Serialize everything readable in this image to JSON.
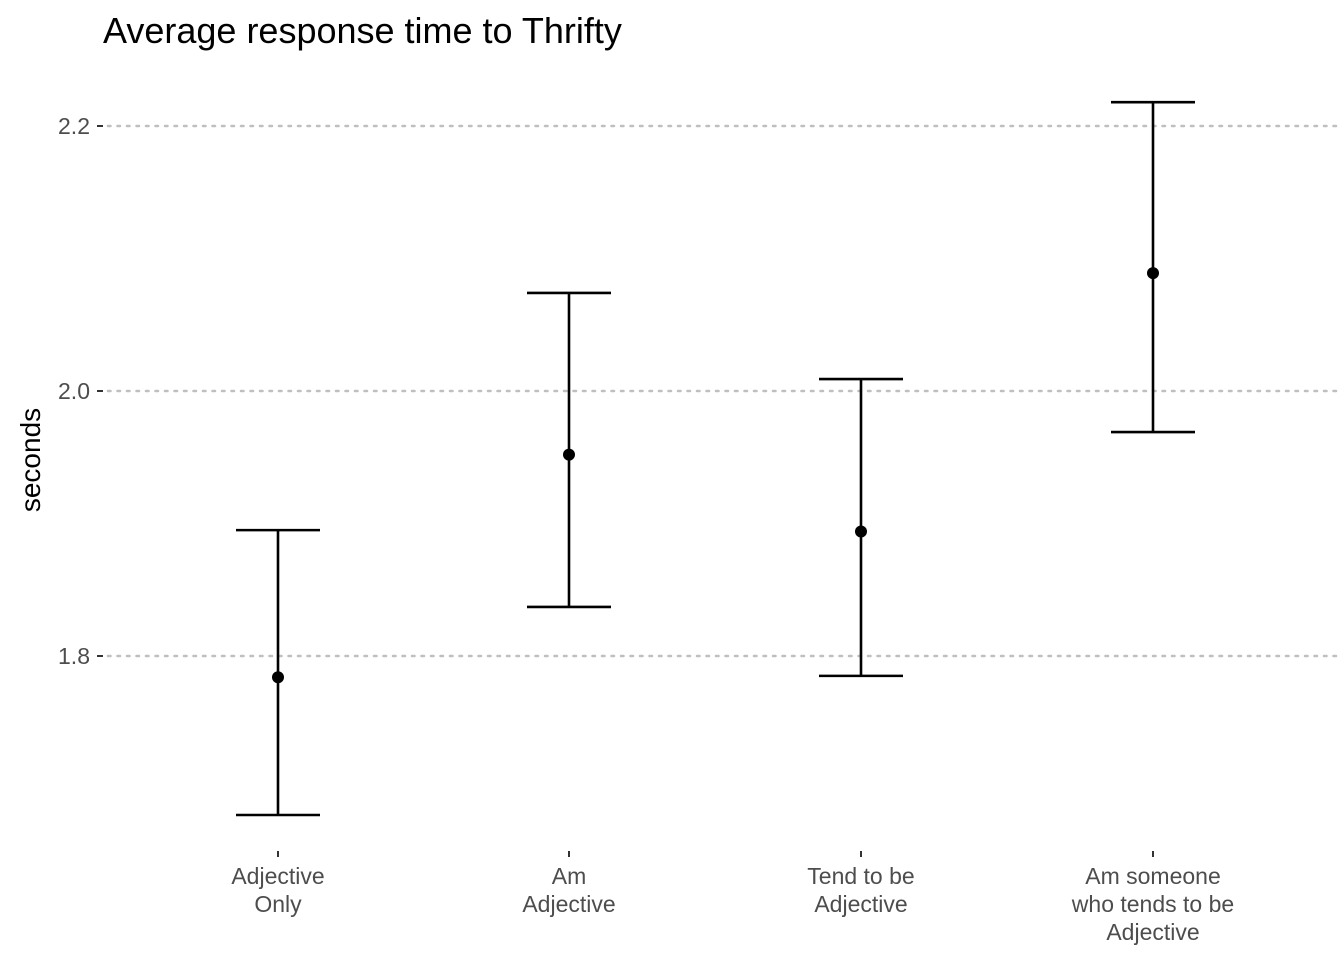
{
  "chart_data": {
    "type": "errorbar",
    "title": "Average response time to Thrifty",
    "xlabel": "",
    "ylabel": "seconds",
    "categories": [
      [
        "Adjective",
        "Only"
      ],
      [
        "Am",
        "Adjective"
      ],
      [
        "Tend to be",
        "Adjective"
      ],
      [
        "Am someone",
        "who tends to be",
        "Adjective"
      ]
    ],
    "points": [
      {
        "mean": 1.784,
        "lower": 1.68,
        "upper": 1.895
      },
      {
        "mean": 1.952,
        "lower": 1.837,
        "upper": 2.074
      },
      {
        "mean": 1.894,
        "lower": 1.785,
        "upper": 2.009
      },
      {
        "mean": 2.089,
        "lower": 1.969,
        "upper": 2.218
      }
    ],
    "yticks": [
      1.8,
      2.0,
      2.2
    ],
    "ytick_labels": [
      "1.8",
      "2.0",
      "2.2"
    ],
    "ylim": [
      1.665,
      2.232
    ],
    "grid": "horizontal major, dotted",
    "colors": {
      "marks": "#000000",
      "grid": "#bfbfbf",
      "tick_text": "#4d4d4d"
    }
  }
}
